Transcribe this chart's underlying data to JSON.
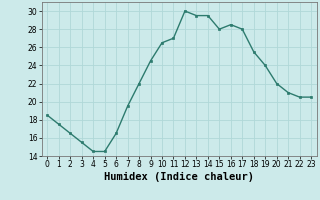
{
  "x": [
    0,
    1,
    2,
    3,
    4,
    5,
    6,
    7,
    8,
    9,
    10,
    11,
    12,
    13,
    14,
    15,
    16,
    17,
    18,
    19,
    20,
    21,
    22,
    23
  ],
  "y": [
    18.5,
    17.5,
    16.5,
    15.5,
    14.5,
    14.5,
    16.5,
    19.5,
    22.0,
    24.5,
    26.5,
    27.0,
    30.0,
    29.5,
    29.5,
    28.0,
    28.5,
    28.0,
    25.5,
    24.0,
    22.0,
    21.0,
    20.5,
    20.5
  ],
  "line_color": "#2d7b6e",
  "marker_color": "#2d7b6e",
  "bg_color": "#cceaea",
  "grid_color": "#b0d8d8",
  "xlabel": "Humidex (Indice chaleur)",
  "ylim": [
    14,
    31
  ],
  "xlim": [
    -0.5,
    23.5
  ],
  "yticks": [
    14,
    16,
    18,
    20,
    22,
    24,
    26,
    28,
    30
  ],
  "xticks": [
    0,
    1,
    2,
    3,
    4,
    5,
    6,
    7,
    8,
    9,
    10,
    11,
    12,
    13,
    14,
    15,
    16,
    17,
    18,
    19,
    20,
    21,
    22,
    23
  ],
  "tick_labelsize": 5.5,
  "xlabel_fontsize": 7.5
}
